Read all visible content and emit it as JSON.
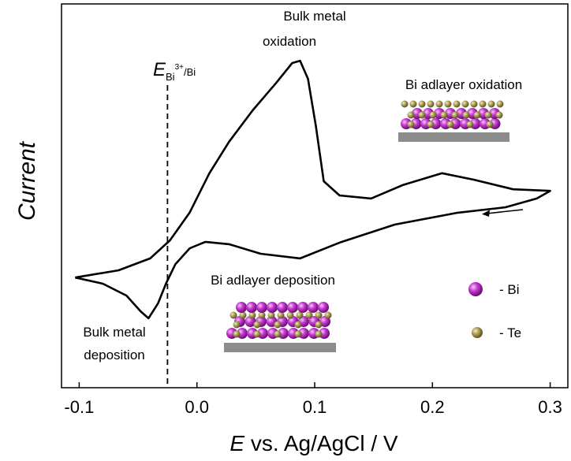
{
  "chart_data": {
    "type": "line",
    "x_label_var": "E",
    "x_label": "vs. Ag/AgCl / V",
    "y_label": "Current",
    "xlim": [
      -0.115,
      0.315
    ],
    "xticks": [
      -0.1,
      {
        "value": 0,
        "label": "0.0"
      },
      0.1,
      0.2,
      0.3
    ],
    "ylim": [
      0,
      100
    ],
    "x": [
      -0.1034,
      -0.0665,
      -0.0397,
      -0.0229,
      -0.0062,
      0.0106,
      0.0273,
      0.0474,
      0.0675,
      0.0809,
      0.0876,
      0.0943,
      0.101,
      0.1077,
      0.1211,
      0.1479,
      0.1747,
      0.2082,
      0.235,
      0.2685,
      0.3,
      0.2886,
      0.2618,
      0.2216,
      0.168,
      0.1211,
      0.0876,
      0.0541,
      0.0273,
      0.0072,
      -0.0062,
      -0.0183,
      -0.0263,
      -0.033,
      -0.0411,
      -0.0478,
      -0.0598,
      -0.0799,
      -0.1034
    ],
    "series": [
      {
        "color": "#000000",
        "values": [
          28.7,
          30.6,
          33.7,
          38.4,
          45.6,
          55.9,
          64.1,
          72.3,
          79.5,
          84.6,
          85.2,
          80.5,
          68.2,
          53.8,
          50.1,
          49.3,
          52.8,
          55.9,
          54.2,
          51.7,
          51.3,
          49.3,
          47.0,
          45.6,
          42.5,
          37.8,
          33.7,
          34.9,
          37.4,
          38.0,
          36.3,
          32.2,
          27.1,
          22.0,
          18.1,
          19.9,
          24.0,
          27.1,
          28.7
        ]
      }
    ],
    "reference_line": {
      "x": -0.025,
      "label": {
        "main": "E",
        "sub": "Bi",
        "sup": "3+",
        "sub2": "/Bi"
      }
    },
    "annotations": {
      "bulk_oxidation": [
        "Bulk metal",
        "oxidation"
      ],
      "adlayer_oxidation": "Bi adlayer oxidation",
      "adlayer_deposition": "Bi adlayer deposition",
      "bulk_deposition": [
        "Bulk metal",
        "deposition"
      ]
    },
    "legend": [
      "- Bi",
      "- Te"
    ]
  }
}
